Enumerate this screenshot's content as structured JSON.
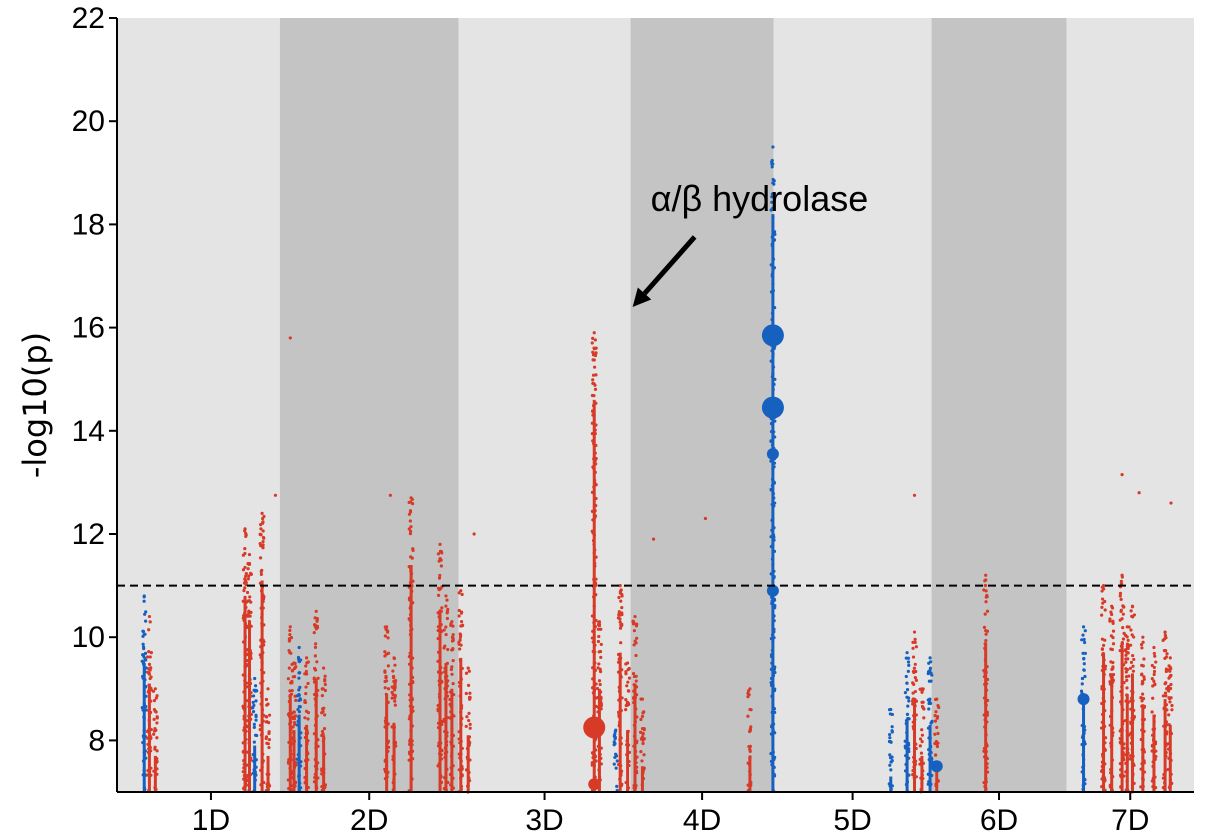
{
  "chart_data": {
    "type": "scatter",
    "title": "",
    "xlabel": "",
    "ylabel": "-log10(p)",
    "ylim": [
      7,
      22
    ],
    "yticks": [
      8,
      10,
      12,
      14,
      16,
      18,
      20,
      22
    ],
    "threshold": 11,
    "annotation": {
      "text": "α/β hydrolase",
      "x": 6.51,
      "y": 16.4
    },
    "colors": {
      "red": "#d73a27",
      "blue": "#1660c0",
      "band_light": "#e4e4e4",
      "band_dark": "#c4c4c4"
    },
    "chromosomes": [
      {
        "name": "1D",
        "range": [
          0.0,
          1.86
        ],
        "shade": "light"
      },
      {
        "name": "2D",
        "range": [
          1.86,
          4.27
        ],
        "shade": "dark"
      },
      {
        "name": "3D",
        "range": [
          4.27,
          6.59
        ],
        "shade": "light"
      },
      {
        "name": "4D",
        "range": [
          6.59,
          8.52
        ],
        "shade": "dark"
      },
      {
        "name": "5D",
        "range": [
          8.52,
          10.65
        ],
        "shade": "light"
      },
      {
        "name": "6D",
        "range": [
          10.65,
          12.47
        ],
        "shade": "dark"
      },
      {
        "name": "7D",
        "range": [
          12.47,
          14.19
        ],
        "shade": "light"
      }
    ],
    "point_sizes": {
      "small": 1.6,
      "medium": 6,
      "large": 11
    },
    "columns": [
      {
        "x": 0.03,
        "color": "blue",
        "top": 10.8
      },
      {
        "x": 0.1,
        "color": "red",
        "top": 10.4
      },
      {
        "x": 0.18,
        "color": "red",
        "top": 9.0
      },
      {
        "x": 1.39,
        "color": "red",
        "top": 12.1
      },
      {
        "x": 1.45,
        "color": "red",
        "top": 11.6
      },
      {
        "x": 1.52,
        "color": "blue",
        "top": 9.2
      },
      {
        "x": 1.62,
        "color": "red",
        "top": 12.4
      },
      {
        "x": 1.7,
        "color": "red",
        "top": 9.0
      },
      {
        "x": 2.0,
        "color": "red",
        "top": 10.2
      },
      {
        "x": 2.05,
        "color": "red",
        "top": 9.5
      },
      {
        "x": 2.12,
        "color": "blue",
        "top": 9.8
      },
      {
        "x": 2.22,
        "color": "red",
        "top": 9.6
      },
      {
        "x": 2.35,
        "color": "red",
        "top": 10.5
      },
      {
        "x": 2.45,
        "color": "red",
        "top": 9.4
      },
      {
        "x": 3.3,
        "color": "red",
        "top": 10.2
      },
      {
        "x": 3.4,
        "color": "red",
        "top": 9.6
      },
      {
        "x": 3.63,
        "color": "red",
        "top": 12.7
      },
      {
        "x": 4.02,
        "color": "red",
        "top": 11.8
      },
      {
        "x": 4.1,
        "color": "red",
        "top": 10.8
      },
      {
        "x": 4.18,
        "color": "red",
        "top": 10.3
      },
      {
        "x": 4.3,
        "color": "red",
        "top": 10.9
      },
      {
        "x": 4.4,
        "color": "red",
        "top": 9.4
      },
      {
        "x": 6.1,
        "color": "red",
        "top": 15.9
      },
      {
        "x": 6.17,
        "color": "red",
        "top": 10.3
      },
      {
        "x": 6.39,
        "color": "blue",
        "top": 8.2
      },
      {
        "x": 6.45,
        "color": "red",
        "top": 11.0
      },
      {
        "x": 6.55,
        "color": "red",
        "top": 9.5
      },
      {
        "x": 6.65,
        "color": "red",
        "top": 10.4
      },
      {
        "x": 6.75,
        "color": "red",
        "top": 8.8
      },
      {
        "x": 8.2,
        "color": "red",
        "top": 9.0
      },
      {
        "x": 8.51,
        "color": "blue",
        "top": 19.5
      },
      {
        "x": 10.1,
        "color": "blue",
        "top": 8.6
      },
      {
        "x": 10.32,
        "color": "blue",
        "top": 9.7
      },
      {
        "x": 10.42,
        "color": "red",
        "top": 10.1
      },
      {
        "x": 10.52,
        "color": "red",
        "top": 9.0
      },
      {
        "x": 10.63,
        "color": "blue",
        "top": 9.6
      },
      {
        "x": 10.72,
        "color": "red",
        "top": 8.8
      },
      {
        "x": 11.38,
        "color": "red",
        "top": 11.2
      },
      {
        "x": 12.7,
        "color": "blue",
        "top": 10.2
      },
      {
        "x": 12.97,
        "color": "red",
        "top": 11.0
      },
      {
        "x": 13.08,
        "color": "red",
        "top": 10.6
      },
      {
        "x": 13.22,
        "color": "red",
        "top": 11.2
      },
      {
        "x": 13.29,
        "color": "red",
        "top": 10.2
      },
      {
        "x": 13.36,
        "color": "red",
        "top": 10.6
      },
      {
        "x": 13.5,
        "color": "red",
        "top": 10.0
      },
      {
        "x": 13.65,
        "color": "red",
        "top": 9.8
      },
      {
        "x": 13.8,
        "color": "red",
        "top": 10.1
      },
      {
        "x": 13.87,
        "color": "red",
        "top": 9.6
      }
    ],
    "points": [
      {
        "x": 8.51,
        "y": 15.85,
        "color": "blue",
        "size": "large"
      },
      {
        "x": 8.51,
        "y": 14.45,
        "color": "blue",
        "size": "large"
      },
      {
        "x": 8.51,
        "y": 13.55,
        "color": "blue",
        "size": "medium"
      },
      {
        "x": 8.51,
        "y": 12.3,
        "color": "blue",
        "size": "small"
      },
      {
        "x": 8.51,
        "y": 10.9,
        "color": "blue",
        "size": "medium"
      },
      {
        "x": 8.51,
        "y": 9.35,
        "color": "blue",
        "size": "small"
      },
      {
        "x": 8.51,
        "y": 8.45,
        "color": "blue",
        "size": "small"
      },
      {
        "x": 6.1,
        "y": 10.6,
        "color": "red",
        "size": "small"
      },
      {
        "x": 6.1,
        "y": 8.25,
        "color": "red",
        "size": "large"
      },
      {
        "x": 6.1,
        "y": 7.15,
        "color": "red",
        "size": "medium"
      },
      {
        "x": 10.72,
        "y": 7.5,
        "color": "blue",
        "size": "medium"
      },
      {
        "x": 12.7,
        "y": 8.8,
        "color": "blue",
        "size": "medium"
      },
      {
        "x": 0.03,
        "y": 8.2,
        "color": "blue",
        "size": "small"
      },
      {
        "x": 4.02,
        "y": 8.4,
        "color": "red",
        "size": "small"
      },
      {
        "x": 8.2,
        "y": 8.6,
        "color": "red",
        "size": "small"
      },
      {
        "x": 2.0,
        "y": 15.8,
        "color": "red",
        "size": "small"
      },
      {
        "x": 1.8,
        "y": 12.75,
        "color": "red",
        "size": "small"
      },
      {
        "x": 3.35,
        "y": 12.75,
        "color": "red",
        "size": "small"
      },
      {
        "x": 4.48,
        "y": 12.0,
        "color": "red",
        "size": "small"
      },
      {
        "x": 6.1,
        "y": 14.3,
        "color": "red",
        "size": "small"
      },
      {
        "x": 7.6,
        "y": 12.3,
        "color": "red",
        "size": "small"
      },
      {
        "x": 6.9,
        "y": 11.9,
        "color": "red",
        "size": "small"
      },
      {
        "x": 10.42,
        "y": 12.75,
        "color": "red",
        "size": "small"
      },
      {
        "x": 13.22,
        "y": 13.15,
        "color": "red",
        "size": "small"
      },
      {
        "x": 13.45,
        "y": 12.8,
        "color": "red",
        "size": "small"
      },
      {
        "x": 13.88,
        "y": 12.6,
        "color": "red",
        "size": "small"
      }
    ]
  }
}
